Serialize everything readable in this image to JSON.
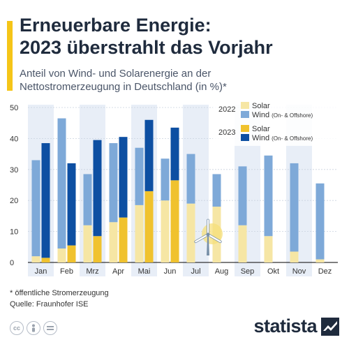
{
  "header": {
    "title_line1": "Erneuerbare Energie:",
    "title_line2": "2023 überstrahlt das Vorjahr",
    "subtitle_line1": "Anteil von Wind- und Solarenergie an der",
    "subtitle_line2": "Nettostromerzeugung in Deutschland (in %)*"
  },
  "footer": {
    "note": "* öffentliche Stromerzeugung",
    "source": "Quelle: Fraunhofer ISE",
    "brand": "statista",
    "license_icons": [
      "cc-icon",
      "person-icon",
      "equals-icon"
    ]
  },
  "legend": {
    "year_2022": "2022",
    "year_2023": "2023",
    "solar": "Solar",
    "wind": "Wind",
    "wind_note": "(On- & Offshore)"
  },
  "colors": {
    "solar_2022": "#f6e6a4",
    "wind_2022": "#7ea9d8",
    "solar_2023": "#f0c22e",
    "wind_2023": "#0d4fa2",
    "band": "#e8eef7",
    "accent": "#f5c518",
    "title": "#1f2b3d"
  },
  "chart_data": {
    "type": "bar",
    "stacked": true,
    "categories": [
      "Jan",
      "Feb",
      "Mrz",
      "Apr",
      "Mai",
      "Jun",
      "Jul",
      "Aug",
      "Sep",
      "Okt",
      "Nov",
      "Dez"
    ],
    "yticks": [
      0,
      10,
      20,
      30,
      40,
      50
    ],
    "ylim": [
      0,
      50
    ],
    "series": [
      {
        "name": "2022 Solar",
        "year": "2022",
        "kind": "solar",
        "values": [
          2,
          4.5,
          12,
          13,
          18.5,
          20,
          19,
          18,
          12,
          8.5,
          3.5,
          1
        ]
      },
      {
        "name": "2022 Wind (On- & Offshore)",
        "year": "2022",
        "kind": "wind",
        "values": [
          31,
          42,
          16.5,
          25.5,
          18.5,
          13.5,
          16,
          10.5,
          19,
          26,
          28.5,
          24.5
        ]
      },
      {
        "name": "2023 Solar",
        "year": "2023",
        "kind": "solar",
        "values": [
          1.5,
          5.5,
          8.5,
          14.5,
          23,
          26.5,
          null,
          null,
          null,
          null,
          null,
          null
        ]
      },
      {
        "name": "2023 Wind (On- & Offshore)",
        "year": "2023",
        "kind": "wind",
        "values": [
          37,
          26.5,
          31,
          26,
          23,
          17,
          null,
          null,
          null,
          null,
          null,
          null
        ]
      }
    ],
    "grid": true,
    "legend_position": "top-right",
    "image_icon": "wind-turbine-sun-icon"
  }
}
